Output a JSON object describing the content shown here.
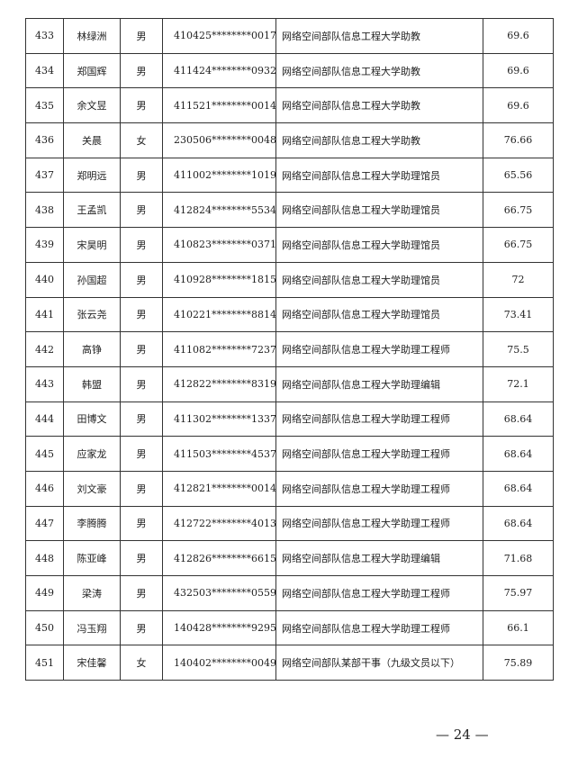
{
  "rows": [
    {
      "no": "433",
      "name": "林绿洲",
      "gender": "男",
      "id": "410425********0017",
      "position": "网络空间部队信息工程大学助教",
      "score": "69.6"
    },
    {
      "no": "434",
      "name": "郑国辉",
      "gender": "男",
      "id": "411424********0932",
      "position": "网络空间部队信息工程大学助教",
      "score": "69.6"
    },
    {
      "no": "435",
      "name": "余文昱",
      "gender": "男",
      "id": "411521********0014",
      "position": "网络空间部队信息工程大学助教",
      "score": "69.6"
    },
    {
      "no": "436",
      "name": "关晨",
      "gender": "女",
      "id": "230506********0048",
      "position": "网络空间部队信息工程大学助教",
      "score": "76.66"
    },
    {
      "no": "437",
      "name": "郑明远",
      "gender": "男",
      "id": "411002********1019",
      "position": "网络空间部队信息工程大学助理馆员",
      "score": "65.56"
    },
    {
      "no": "438",
      "name": "王孟凯",
      "gender": "男",
      "id": "412824********5534",
      "position": "网络空间部队信息工程大学助理馆员",
      "score": "66.75"
    },
    {
      "no": "439",
      "name": "宋昊明",
      "gender": "男",
      "id": "410823********0371",
      "position": "网络空间部队信息工程大学助理馆员",
      "score": "66.75"
    },
    {
      "no": "440",
      "name": "孙国超",
      "gender": "男",
      "id": "410928********1815",
      "position": "网络空间部队信息工程大学助理馆员",
      "score": "72"
    },
    {
      "no": "441",
      "name": "张云尧",
      "gender": "男",
      "id": "410221********8814",
      "position": "网络空间部队信息工程大学助理馆员",
      "score": "73.41"
    },
    {
      "no": "442",
      "name": "高铮",
      "gender": "男",
      "id": "411082********7237",
      "position": "网络空间部队信息工程大学助理工程师",
      "score": "75.5"
    },
    {
      "no": "443",
      "name": "韩盟",
      "gender": "男",
      "id": "412822********8319",
      "position": "网络空间部队信息工程大学助理编辑",
      "score": "72.1"
    },
    {
      "no": "444",
      "name": "田博文",
      "gender": "男",
      "id": "411302********1337",
      "position": "网络空间部队信息工程大学助理工程师",
      "score": "68.64"
    },
    {
      "no": "445",
      "name": "应家龙",
      "gender": "男",
      "id": "411503********4537",
      "position": "网络空间部队信息工程大学助理工程师",
      "score": "68.64"
    },
    {
      "no": "446",
      "name": "刘文豪",
      "gender": "男",
      "id": "412821********0014",
      "position": "网络空间部队信息工程大学助理工程师",
      "score": "68.64"
    },
    {
      "no": "447",
      "name": "李腾腾",
      "gender": "男",
      "id": "412722********4013",
      "position": "网络空间部队信息工程大学助理工程师",
      "score": "68.64"
    },
    {
      "no": "448",
      "name": "陈亚峰",
      "gender": "男",
      "id": "412826********6615",
      "position": "网络空间部队信息工程大学助理编辑",
      "score": "71.68"
    },
    {
      "no": "449",
      "name": "梁涛",
      "gender": "男",
      "id": "432503********0559",
      "position": "网络空间部队信息工程大学助理工程师",
      "score": "75.97"
    },
    {
      "no": "450",
      "name": "冯玉翔",
      "gender": "男",
      "id": "140428********9295",
      "position": "网络空间部队信息工程大学助理工程师",
      "score": "66.1"
    },
    {
      "no": "451",
      "name": "宋佳馨",
      "gender": "女",
      "id": "140402********0049",
      "position": "网络空间部队某部干事（九级文员以下）",
      "score": "75.89"
    }
  ],
  "page_number": "— 24 —"
}
